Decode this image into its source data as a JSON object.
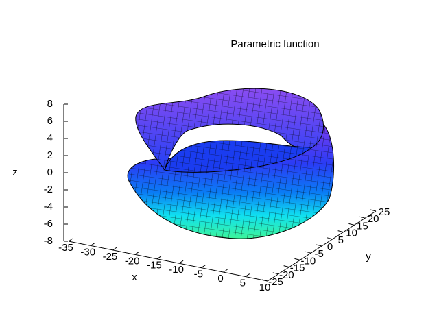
{
  "chart_data": {
    "type": "surface",
    "title": "Parametric function",
    "xlabel": "x",
    "ylabel": "y",
    "zlabel": "z",
    "xlim": [
      -35,
      10
    ],
    "xticks": [
      -35,
      -30,
      -25,
      -20,
      -15,
      -10,
      -5,
      0,
      5,
      10
    ],
    "ylim": [
      -25,
      25
    ],
    "yticks": [
      -25,
      -20,
      -15,
      -10,
      -5,
      0,
      5,
      10,
      15,
      20,
      25
    ],
    "zlim": [
      -8,
      8
    ],
    "zticks": [
      -8,
      -6,
      -4,
      -2,
      0,
      2,
      4,
      6,
      8
    ]
  }
}
